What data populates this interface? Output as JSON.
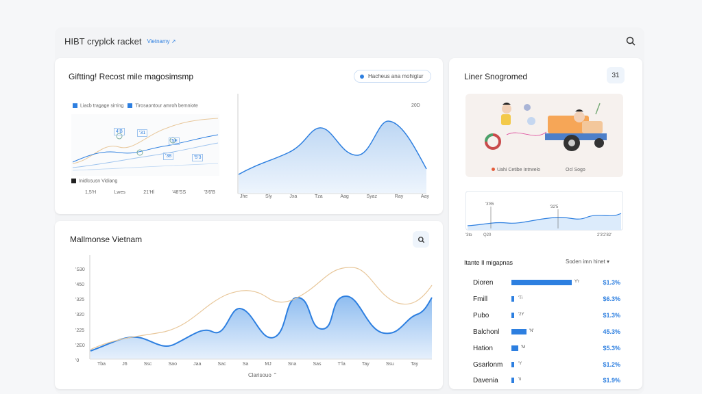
{
  "header": {
    "title": "HIBT cryplck racket",
    "tag": "Vietnamy ↗"
  },
  "card1": {
    "title": "Giftting! Recost mile magosimsmp",
    "pill": "Hacheus ana mohigtur",
    "legend": [
      "Liacb tragage sirring",
      "Tirosaontour amroh bemniote"
    ],
    "legend2": "Inidlcsusn Vidiang",
    "bottom_labels": [
      "1,5'H",
      "Lwes",
      "21'Hl",
      "'48'SS",
      "'3'6'B"
    ],
    "ylabel_right": "20D",
    "x_ticks": [
      "Jhe",
      "Sly",
      "Jxa",
      "Tza",
      "Aag",
      "Syaz",
      "Ray",
      "Aay"
    ],
    "left_chart_markers": [
      "4'B",
      "'31",
      "'5E",
      "'38",
      "'5'3"
    ]
  },
  "card2": {
    "title": "Mallmonse Vietnam",
    "y_ticks": [
      "'S30",
      "'450",
      "'325",
      "'320",
      "'225",
      "'2E0",
      "'0"
    ],
    "x_ticks": [
      "Tba",
      "J6",
      "Ssc",
      "Sao",
      "Jaa",
      "Sac",
      "Sa",
      "MJ",
      "Sna",
      "Sas",
      "T'la",
      "Tay",
      "Ssu",
      "Tay"
    ],
    "x_label": "Clarisouo ⌃"
  },
  "card3": {
    "title": "Liner Snogromed",
    "badge": "31",
    "caption_left": "Uahi Cetibe Intrwelo",
    "caption_right": "Ocl Sogo"
  },
  "card4": {
    "markers": [
      "'3'85",
      "'32'5"
    ],
    "x_left": [
      "'3to",
      "Q20"
    ],
    "x_right": "2'3'2'82'"
  },
  "table": {
    "title": "Itante Il migapnas",
    "sort_label": "Soden imn hinet ▾",
    "rows": [
      {
        "name": "Dioren",
        "small": "Y'r",
        "pct": "$1.3%",
        "fill": 0.88
      },
      {
        "name": "Fmill",
        "small": "'Ti",
        "pct": "$6.3%",
        "fill": 0.04
      },
      {
        "name": "Pubo",
        "small": "'2Y",
        "pct": "$1.3%",
        "fill": 0.04
      },
      {
        "name": "Balchonl",
        "small": "'N'",
        "pct": "45.3%",
        "fill": 0.22
      },
      {
        "name": "Hation",
        "small": "'M",
        "pct": "$5.3%",
        "fill": 0.1
      },
      {
        "name": "Gsarlonm",
        "small": "'Y",
        "pct": "$1.2%",
        "fill": 0.04
      },
      {
        "name": "Davenia",
        "small": "'ti",
        "pct": "$1.9%",
        "fill": 0.04
      }
    ]
  },
  "colors": {
    "accent": "#2d7fe0",
    "area_fill": "#cfe2f8",
    "secondary_line": "#e8c79a"
  }
}
